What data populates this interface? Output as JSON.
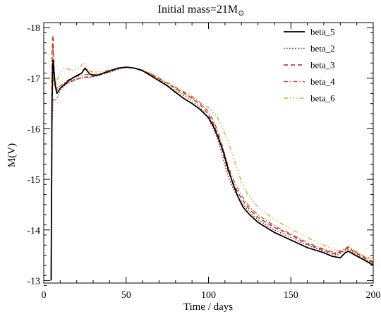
{
  "chart_data": {
    "type": "line",
    "title": "Initial mass=21M",
    "title_subscript_symbol": "⊙",
    "xlabel": "Time / days",
    "ylabel": "M(V)",
    "xlim": [
      0,
      200
    ],
    "ylim": [
      -12.95,
      -18.1
    ],
    "y_axis_inverted": true,
    "xticks": [
      0,
      50,
      100,
      150,
      200
    ],
    "yticks": [
      -18,
      -17,
      -16,
      -15,
      -14,
      -13
    ],
    "minor_x_step": 10,
    "minor_y_step": 0.2,
    "grid": false,
    "legend_position": "top-right",
    "series": [
      {
        "name": "beta_5",
        "color": "#000000",
        "dash": "",
        "width": 1.8,
        "x": [
          4.5,
          5,
          5.6,
          6.3,
          7,
          8,
          10,
          15,
          20,
          23,
          25,
          28,
          32,
          38,
          45,
          50,
          55,
          60,
          65,
          70,
          75,
          80,
          85,
          90,
          95,
          100,
          103,
          106,
          109,
          112,
          115,
          118,
          121,
          125,
          130,
          140,
          150,
          160,
          170,
          175,
          180,
          183,
          185,
          188,
          192,
          196,
          200
        ],
        "y": [
          -13,
          -16.5,
          -17.35,
          -17.1,
          -16.85,
          -16.7,
          -16.8,
          -16.95,
          -17.05,
          -17.1,
          -17.2,
          -17.08,
          -17.05,
          -17.12,
          -17.2,
          -17.22,
          -17.2,
          -17.15,
          -17.05,
          -16.95,
          -16.85,
          -16.72,
          -16.6,
          -16.5,
          -16.38,
          -16.22,
          -16.05,
          -15.82,
          -15.55,
          -15.2,
          -14.9,
          -14.65,
          -14.45,
          -14.3,
          -14.15,
          -13.95,
          -13.8,
          -13.65,
          -13.55,
          -13.48,
          -13.45,
          -13.55,
          -13.58,
          -13.52,
          -13.45,
          -13.38,
          -13.3
        ]
      },
      {
        "name": "beta_2",
        "color": "#7a1f1f",
        "dash": "1.5,2.5",
        "width": 1.4,
        "x": [
          4.5,
          5,
          5.6,
          6.5,
          8,
          10,
          14,
          18,
          22,
          25,
          28,
          33,
          40,
          47,
          52,
          58,
          65,
          72,
          80,
          88,
          95,
          100,
          103,
          106,
          109,
          112,
          116,
          120,
          125,
          130,
          140,
          150,
          160,
          170,
          178,
          183,
          185,
          188,
          193,
          200
        ],
        "y": [
          -13,
          -16,
          -16.6,
          -16.55,
          -16.6,
          -16.75,
          -16.9,
          -16.97,
          -17.0,
          -17.02,
          -17.02,
          -17.05,
          -17.12,
          -17.2,
          -17.22,
          -17.18,
          -17.05,
          -16.93,
          -16.75,
          -16.6,
          -16.42,
          -16.2,
          -16.0,
          -15.75,
          -15.4,
          -15.05,
          -14.75,
          -14.55,
          -14.35,
          -14.2,
          -14.0,
          -13.85,
          -13.7,
          -13.58,
          -13.5,
          -13.6,
          -13.62,
          -13.55,
          -13.45,
          -13.33
        ]
      },
      {
        "name": "beta_3",
        "color": "#b22222",
        "dash": "6,4",
        "width": 1.4,
        "x": [
          4.5,
          5,
          5.6,
          6.3,
          7,
          8.5,
          10,
          13,
          18,
          22,
          25,
          28,
          33,
          40,
          47,
          52,
          58,
          65,
          72,
          80,
          88,
          95,
          100,
          103,
          106,
          109,
          112,
          116,
          120,
          125,
          130,
          140,
          150,
          160,
          170,
          178,
          183,
          185,
          188,
          193,
          200
        ],
        "y": [
          -13,
          -17.5,
          -17.85,
          -17.2,
          -16.85,
          -16.75,
          -16.8,
          -16.88,
          -16.95,
          -17.0,
          -17.02,
          -17.03,
          -17.06,
          -17.13,
          -17.2,
          -17.22,
          -17.18,
          -17.08,
          -16.95,
          -16.8,
          -16.65,
          -16.48,
          -16.28,
          -16.1,
          -15.85,
          -15.5,
          -15.15,
          -14.85,
          -14.62,
          -14.4,
          -14.25,
          -14.05,
          -13.9,
          -13.72,
          -13.6,
          -13.52,
          -13.62,
          -13.65,
          -13.58,
          -13.48,
          -13.35
        ]
      },
      {
        "name": "beta_4",
        "color": "#d2541e",
        "dash": "6,3,1.5,3",
        "width": 1.4,
        "x": [
          4.5,
          5,
          5.6,
          6.3,
          7,
          8.5,
          10,
          14,
          18,
          22,
          25,
          28,
          33,
          40,
          47,
          52,
          58,
          65,
          72,
          80,
          88,
          95,
          100,
          103,
          106,
          109,
          112,
          116,
          120,
          125,
          130,
          140,
          150,
          160,
          170,
          178,
          183,
          185,
          188,
          193,
          200
        ],
        "y": [
          -13,
          -17.3,
          -17.7,
          -17.1,
          -16.9,
          -16.8,
          -16.85,
          -16.95,
          -17.02,
          -17.05,
          -17.07,
          -17.07,
          -17.08,
          -17.15,
          -17.2,
          -17.22,
          -17.18,
          -17.08,
          -16.97,
          -16.82,
          -16.68,
          -16.52,
          -16.34,
          -16.16,
          -15.92,
          -15.6,
          -15.25,
          -14.93,
          -14.68,
          -14.45,
          -14.3,
          -14.08,
          -13.92,
          -13.75,
          -13.62,
          -13.54,
          -13.64,
          -13.67,
          -13.6,
          -13.5,
          -13.37
        ]
      },
      {
        "name": "beta_6",
        "color": "#f0a030",
        "dash": "6,3,1.5,3,1.5,3,1.5,3",
        "width": 1.4,
        "x": [
          4.5,
          5,
          5.6,
          6.3,
          7,
          8,
          10,
          12,
          15,
          18,
          22,
          24,
          25,
          27,
          30,
          35,
          42,
          50,
          55,
          60,
          65,
          70,
          75,
          80,
          85,
          90,
          95,
          100,
          105,
          108,
          111,
          114,
          117,
          120,
          124,
          128,
          133,
          140,
          150,
          160,
          170,
          178,
          183,
          186,
          190,
          195,
          200
        ],
        "y": [
          -13,
          -16.8,
          -17.05,
          -16.85,
          -16.85,
          -16.95,
          -17.1,
          -17.2,
          -17.18,
          -17.15,
          -17.22,
          -17.3,
          -17.3,
          -17.15,
          -17.12,
          -17.13,
          -17.18,
          -17.22,
          -17.2,
          -17.17,
          -17.1,
          -17.0,
          -16.9,
          -16.78,
          -16.68,
          -16.6,
          -16.52,
          -16.42,
          -16.25,
          -16.05,
          -15.82,
          -15.55,
          -15.25,
          -14.95,
          -14.7,
          -14.52,
          -14.38,
          -14.2,
          -14.02,
          -13.85,
          -13.7,
          -13.6,
          -13.58,
          -13.6,
          -13.55,
          -13.48,
          -13.42
        ]
      }
    ]
  }
}
